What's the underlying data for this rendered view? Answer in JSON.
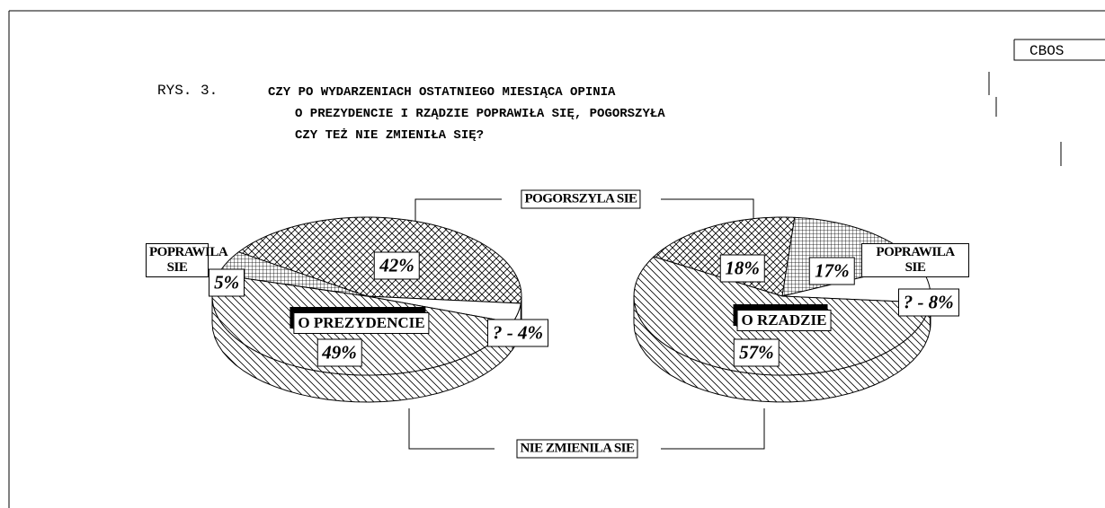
{
  "header": {
    "source": "CBOS"
  },
  "title": {
    "figure": "RYS. 3.",
    "lines": [
      "CZY PO WYDARZENIACH OSTATNIEGO MIESIĄCA OPINIA",
      "O PREZYDENCIE I RZĄDZIE POPRAWIŁA SIĘ, POGORSZYŁA",
      "CZY TEŻ NIE ZMIENIŁA SIĘ?"
    ]
  },
  "chart_data": [
    {
      "type": "pie",
      "title": "O PREZYDENCIE",
      "categories": [
        "POGORSZYLA SIE",
        null,
        "NIE ZMIENILA SIE",
        "POPRAWILA SIE"
      ],
      "values": [
        42,
        4,
        49,
        5
      ],
      "value_labels": [
        "42%",
        "? - 4%",
        "49%",
        "5%"
      ],
      "patterns": [
        "crosshatch",
        "none",
        "diagonal",
        "grid"
      ]
    },
    {
      "type": "pie",
      "title": "O RZADZIE",
      "categories": [
        null,
        "POPRAWILA SIE",
        null,
        null
      ],
      "values": [
        18,
        17,
        8,
        57
      ],
      "value_labels": [
        "18%",
        "17%",
        "? - 8%",
        "57%"
      ],
      "patterns": [
        "crosshatch",
        "grid",
        "none",
        "diagonal"
      ]
    }
  ]
}
